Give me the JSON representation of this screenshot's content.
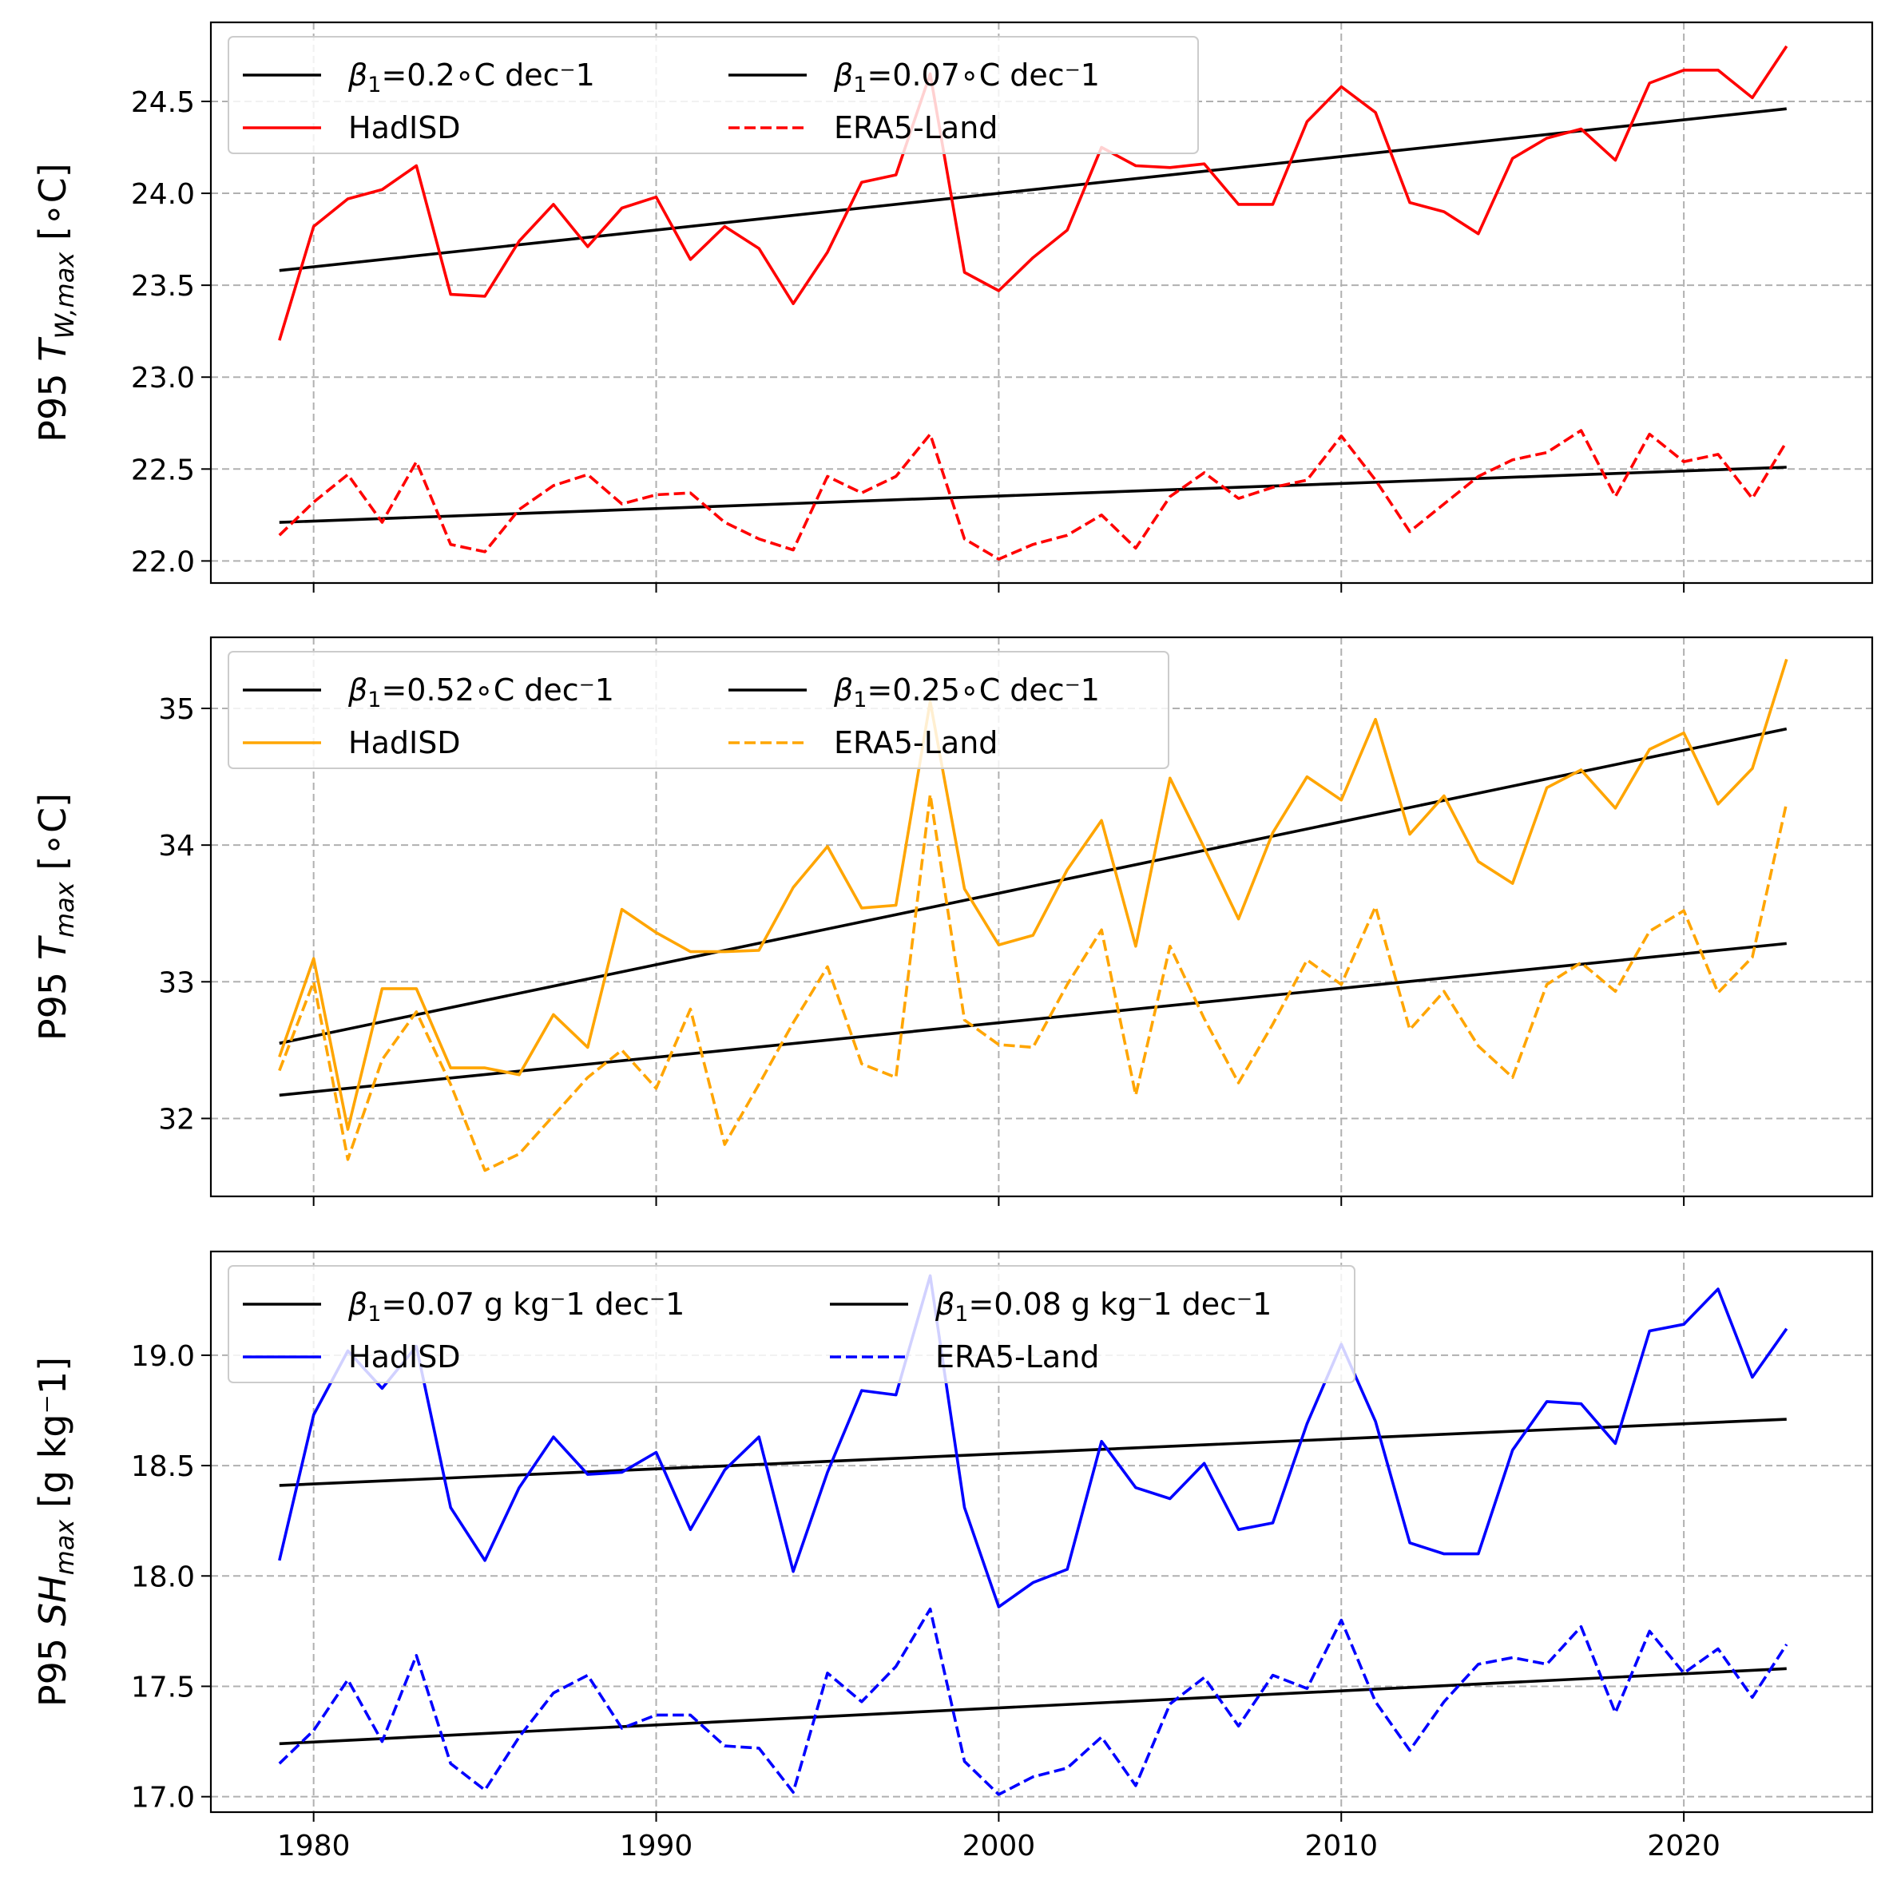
{
  "chart_data": [
    {
      "type": "line",
      "panel": "top",
      "ylabel": {
        "prefix": "P95 ",
        "symbol": "T",
        "subscript": "W,max",
        "unit": " [∘C]"
      },
      "xlim": [
        1977,
        2025.5
      ],
      "ylim": [
        21.88,
        24.93
      ],
      "yticks": [
        22.0,
        22.5,
        23.0,
        23.5,
        24.0,
        24.5
      ],
      "ytick_labels": [
        "22.0",
        "22.5",
        "23.0",
        "23.5",
        "24.0",
        "24.5"
      ],
      "xticks": [
        1980,
        1990,
        2000,
        2010,
        2020
      ],
      "xtick_labels": [
        "",
        "",
        "",
        "",
        ""
      ],
      "legend": {
        "placement": "top-left",
        "columns": [
          [
            {
              "symbol": "β",
              "sub": "1",
              "text": "=0.2∘C dec⁻1",
              "style": "solid",
              "color": "#000000"
            },
            {
              "text": "HadISD",
              "style": "solid",
              "color": "#ff0000"
            }
          ],
          [
            {
              "symbol": "β",
              "sub": "1",
              "text": "=0.07∘C dec⁻1",
              "style": "solid",
              "color": "#000000"
            },
            {
              "text": "ERA5-Land",
              "style": "dashed",
              "color": "#ff0000"
            }
          ]
        ]
      },
      "x": [
        1979,
        1980,
        1981,
        1982,
        1983,
        1984,
        1985,
        1986,
        1987,
        1988,
        1989,
        1990,
        1991,
        1992,
        1993,
        1994,
        1995,
        1996,
        1997,
        1998,
        1999,
        2000,
        2001,
        2002,
        2003,
        2004,
        2005,
        2006,
        2007,
        2008,
        2009,
        2010,
        2011,
        2012,
        2013,
        2014,
        2015,
        2016,
        2017,
        2018,
        2019,
        2020,
        2021,
        2022,
        2023
      ],
      "series": [
        {
          "name": "HadISD",
          "color": "#ff0000",
          "style": "solid",
          "values": [
            23.2,
            23.82,
            23.97,
            24.02,
            24.15,
            23.45,
            23.44,
            23.74,
            23.94,
            23.71,
            23.92,
            23.98,
            23.64,
            23.82,
            23.7,
            23.4,
            23.68,
            24.06,
            24.1,
            24.65,
            23.57,
            23.47,
            23.65,
            23.8,
            24.25,
            24.15,
            24.14,
            24.16,
            23.94,
            23.94,
            24.39,
            24.58,
            24.44,
            23.95,
            23.9,
            23.78,
            24.19,
            24.3,
            24.35,
            24.18,
            24.6,
            24.67,
            24.67,
            24.52,
            24.8
          ]
        },
        {
          "name": "ERA5-Land",
          "color": "#ff0000",
          "style": "dashed",
          "values": [
            22.14,
            22.32,
            22.47,
            22.21,
            22.54,
            22.09,
            22.05,
            22.28,
            22.41,
            22.47,
            22.31,
            22.36,
            22.37,
            22.21,
            22.12,
            22.06,
            22.46,
            22.37,
            22.46,
            22.69,
            22.12,
            22.01,
            22.09,
            22.14,
            22.25,
            22.07,
            22.35,
            22.48,
            22.34,
            22.4,
            22.44,
            22.68,
            22.44,
            22.16,
            22.31,
            22.46,
            22.55,
            22.59,
            22.71,
            22.35,
            22.69,
            22.54,
            22.58,
            22.34,
            22.65
          ]
        }
      ],
      "trends": [
        {
          "name": "β1=0.2∘C dec⁻1",
          "x": [
            1979,
            2023
          ],
          "y": [
            23.58,
            24.46
          ]
        },
        {
          "name": "β1=0.07∘C dec⁻1",
          "x": [
            1979,
            2023
          ],
          "y": [
            22.21,
            22.51
          ]
        }
      ]
    },
    {
      "type": "line",
      "panel": "middle",
      "ylabel": {
        "prefix": "P95 ",
        "symbol": "T",
        "subscript": "max",
        "unit": " [∘C]"
      },
      "xlim": [
        1977,
        2025.5
      ],
      "ylim": [
        31.43,
        35.52
      ],
      "yticks": [
        32,
        33,
        34,
        35
      ],
      "ytick_labels": [
        "32",
        "33",
        "34",
        "35"
      ],
      "xticks": [
        1980,
        1990,
        2000,
        2010,
        2020
      ],
      "xtick_labels": [
        "",
        "",
        "",
        "",
        ""
      ],
      "legend": {
        "placement": "top-left",
        "columns": [
          [
            {
              "symbol": "β",
              "sub": "1",
              "text": "=0.52∘C dec⁻1",
              "style": "solid",
              "color": "#000000"
            },
            {
              "text": "HadISD",
              "style": "solid",
              "color": "#ffa500"
            }
          ],
          [
            {
              "symbol": "β",
              "sub": "1",
              "text": "=0.25∘C dec⁻1",
              "style": "solid",
              "color": "#000000"
            },
            {
              "text": "ERA5-Land",
              "style": "dashed",
              "color": "#ffa500"
            }
          ]
        ]
      },
      "x": [
        1979,
        1980,
        1981,
        1982,
        1983,
        1984,
        1985,
        1986,
        1987,
        1988,
        1989,
        1990,
        1991,
        1992,
        1993,
        1994,
        1995,
        1996,
        1997,
        1998,
        1999,
        2000,
        2001,
        2002,
        2003,
        2004,
        2005,
        2006,
        2007,
        2008,
        2009,
        2010,
        2011,
        2012,
        2013,
        2014,
        2015,
        2016,
        2017,
        2018,
        2019,
        2020,
        2021,
        2022,
        2023
      ],
      "series": [
        {
          "name": "HadISD",
          "color": "#ffa500",
          "style": "solid",
          "values": [
            32.45,
            33.17,
            31.92,
            32.95,
            32.95,
            32.37,
            32.37,
            32.32,
            32.76,
            32.52,
            33.53,
            33.36,
            33.22,
            33.22,
            33.23,
            33.69,
            33.99,
            33.54,
            33.56,
            35.05,
            33.68,
            33.27,
            33.34,
            33.82,
            34.18,
            33.26,
            34.49,
            33.98,
            33.46,
            34.09,
            34.5,
            34.33,
            34.92,
            34.08,
            34.36,
            33.88,
            33.72,
            34.42,
            34.55,
            34.27,
            34.7,
            34.82,
            34.3,
            34.56,
            35.36
          ]
        },
        {
          "name": "ERA5-Land",
          "color": "#ffa500",
          "style": "dashed",
          "values": [
            32.35,
            33.0,
            31.7,
            32.43,
            32.78,
            32.25,
            31.62,
            31.74,
            32.02,
            32.3,
            32.5,
            32.22,
            32.8,
            31.81,
            32.25,
            32.7,
            33.11,
            32.4,
            32.3,
            34.37,
            32.72,
            32.54,
            32.52,
            32.98,
            33.38,
            32.17,
            33.26,
            32.73,
            32.26,
            32.69,
            33.16,
            32.98,
            33.55,
            32.65,
            32.93,
            32.53,
            32.3,
            32.98,
            33.14,
            32.93,
            33.37,
            33.52,
            32.92,
            33.18,
            34.31
          ]
        }
      ],
      "trends": [
        {
          "name": "β1=0.52∘C dec⁻1",
          "x": [
            1979,
            2023
          ],
          "y": [
            32.55,
            34.85
          ]
        },
        {
          "name": "β1=0.25∘C dec⁻1",
          "x": [
            1979,
            2023
          ],
          "y": [
            32.17,
            33.28
          ]
        }
      ]
    },
    {
      "type": "line",
      "panel": "bottom",
      "ylabel": {
        "prefix": "P95 ",
        "symbol": "SH",
        "subscript": "max",
        "unit": " [g kg⁻1]"
      },
      "xlim": [
        1977,
        2025.5
      ],
      "ylim": [
        16.93,
        19.47
      ],
      "yticks": [
        17.0,
        17.5,
        18.0,
        18.5,
        19.0
      ],
      "ytick_labels": [
        "17.0",
        "17.5",
        "18.0",
        "18.5",
        "19.0"
      ],
      "xticks": [
        1980,
        1990,
        2000,
        2010,
        2020
      ],
      "xtick_labels": [
        "1980",
        "1990",
        "2000",
        "2010",
        "2020"
      ],
      "legend": {
        "placement": "top-left",
        "columns": [
          [
            {
              "symbol": "β",
              "sub": "1",
              "text": "=0.07 g kg⁻1 dec⁻1",
              "style": "solid",
              "color": "#000000"
            },
            {
              "text": "HadISD",
              "style": "solid",
              "color": "#0000ff"
            }
          ],
          [
            {
              "symbol": "β",
              "sub": "1",
              "text": "=0.08 g kg⁻1 dec⁻1",
              "style": "solid",
              "color": "#000000"
            },
            {
              "text": "ERA5-Land",
              "style": "dashed",
              "color": "#0000ff"
            }
          ]
        ]
      },
      "x": [
        1979,
        1980,
        1981,
        1982,
        1983,
        1984,
        1985,
        1986,
        1987,
        1988,
        1989,
        1990,
        1991,
        1992,
        1993,
        1994,
        1995,
        1996,
        1997,
        1998,
        1999,
        2000,
        2001,
        2002,
        2003,
        2004,
        2005,
        2006,
        2007,
        2008,
        2009,
        2010,
        2011,
        2012,
        2013,
        2014,
        2015,
        2016,
        2017,
        2018,
        2019,
        2020,
        2021,
        2022,
        2023
      ],
      "series": [
        {
          "name": "HadISD",
          "color": "#0000ff",
          "style": "solid",
          "values": [
            18.07,
            18.73,
            19.02,
            18.85,
            19.04,
            18.31,
            18.07,
            18.4,
            18.63,
            18.46,
            18.47,
            18.56,
            18.21,
            18.48,
            18.63,
            18.02,
            18.47,
            18.84,
            18.82,
            19.36,
            18.31,
            17.86,
            17.97,
            18.03,
            18.61,
            18.4,
            18.35,
            18.51,
            18.21,
            18.24,
            18.69,
            19.05,
            18.7,
            18.15,
            18.1,
            18.1,
            18.57,
            18.79,
            18.78,
            18.6,
            19.11,
            19.14,
            19.3,
            18.9,
            19.12
          ]
        },
        {
          "name": "ERA5-Land",
          "color": "#0000ff",
          "style": "dashed",
          "values": [
            17.15,
            17.3,
            17.53,
            17.25,
            17.64,
            17.15,
            17.03,
            17.27,
            17.47,
            17.55,
            17.31,
            17.37,
            17.37,
            17.23,
            17.22,
            17.02,
            17.56,
            17.43,
            17.59,
            17.85,
            17.16,
            17.01,
            17.09,
            17.13,
            17.27,
            17.05,
            17.42,
            17.54,
            17.32,
            17.55,
            17.49,
            17.8,
            17.43,
            17.21,
            17.43,
            17.6,
            17.63,
            17.6,
            17.77,
            17.38,
            17.75,
            17.56,
            17.67,
            17.45,
            17.69
          ]
        }
      ],
      "trends": [
        {
          "name": "β1=0.07 g kg⁻1 dec⁻1",
          "x": [
            1979,
            2023
          ],
          "y": [
            18.41,
            18.71
          ]
        },
        {
          "name": "β1=0.08 g kg⁻1 dec⁻1",
          "x": [
            1979,
            2023
          ],
          "y": [
            17.24,
            17.58
          ]
        }
      ]
    }
  ]
}
